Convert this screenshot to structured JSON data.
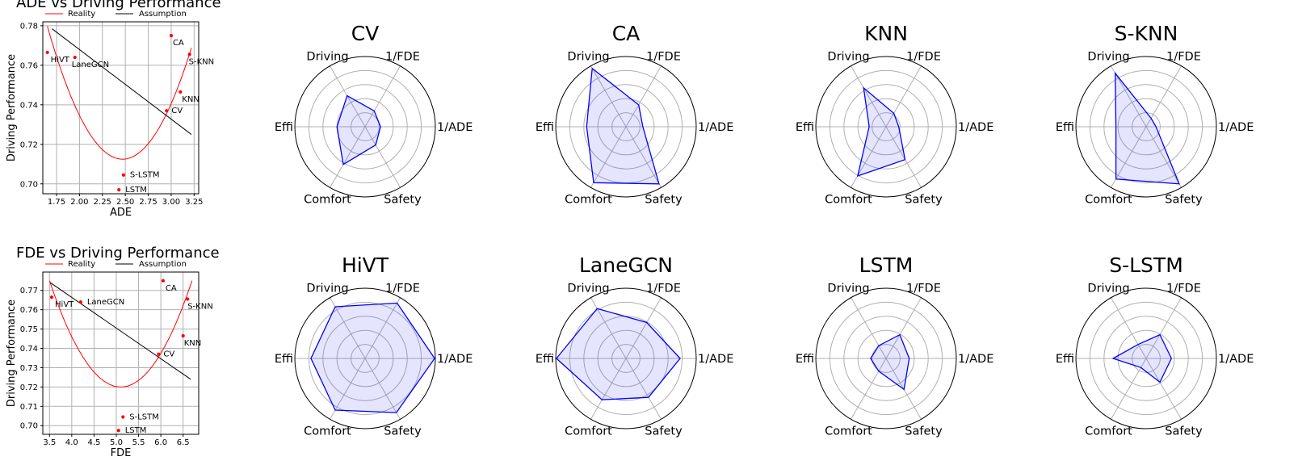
{
  "chart_data": [
    {
      "type": "scatter",
      "id": "ade",
      "title": "ADE vs Driving Performance",
      "xlabel": "ADE",
      "ylabel": "Driving Performance",
      "xlim": [
        1.6,
        3.3
      ],
      "ylim": [
        0.695,
        0.782
      ],
      "xticks": [
        1.75,
        2.0,
        2.25,
        2.5,
        2.75,
        3.0,
        3.25
      ],
      "xtick_labels": [
        "1.75",
        "2.00",
        "2.25",
        "2.50",
        "2.75",
        "3.00",
        "3.25"
      ],
      "yticks": [
        0.7,
        0.72,
        0.74,
        0.76,
        0.78
      ],
      "ytick_labels": [
        "0.70",
        "0.72",
        "0.74",
        "0.76",
        "0.78"
      ],
      "grid": true,
      "legend": [
        "Reality",
        "Assumption"
      ],
      "points": [
        {
          "label": "HiVT",
          "x": 1.65,
          "y": 0.7665
        },
        {
          "label": "LaneGCN",
          "x": 1.95,
          "y": 0.764
        },
        {
          "label": "CA",
          "x": 3.0,
          "y": 0.775
        },
        {
          "label": "S-KNN",
          "x": 3.2,
          "y": 0.7655
        },
        {
          "label": "KNN",
          "x": 3.1,
          "y": 0.7465
        },
        {
          "label": "CV",
          "x": 2.95,
          "y": 0.737
        },
        {
          "label": "S-LSTM",
          "x": 2.48,
          "y": 0.7045
        },
        {
          "label": "LSTM",
          "x": 2.43,
          "y": 0.697
        }
      ],
      "reality_curve": {
        "x_vertex": 2.47,
        "y_vertex": 0.7125,
        "a": 0.1,
        "x_range": [
          1.65,
          3.22
        ]
      },
      "assumption_line": {
        "x0": 1.7,
        "y0": 0.7785,
        "x1": 3.22,
        "y1": 0.725
      }
    },
    {
      "type": "scatter",
      "id": "fde",
      "title": "FDE vs Driving Performance",
      "xlabel": "FDE",
      "ylabel": "Driving Performance",
      "xlim": [
        3.35,
        6.85
      ],
      "ylim": [
        0.6955,
        0.7795
      ],
      "xticks": [
        3.5,
        4.0,
        4.5,
        5.0,
        5.5,
        6.0,
        6.5
      ],
      "xtick_labels": [
        "3.5",
        "4.0",
        "4.5",
        "5.0",
        "5.5",
        "6.0",
        "6.5"
      ],
      "yticks": [
        0.7,
        0.71,
        0.72,
        0.73,
        0.74,
        0.75,
        0.76,
        0.77
      ],
      "ytick_labels": [
        "0.70",
        "0.71",
        "0.72",
        "0.73",
        "0.74",
        "0.75",
        "0.76",
        "0.77"
      ],
      "grid": true,
      "legend": [
        "Reality",
        "Assumption"
      ],
      "points": [
        {
          "label": "HiVT",
          "x": 3.55,
          "y": 0.7665
        },
        {
          "label": "LaneGCN",
          "x": 4.2,
          "y": 0.764
        },
        {
          "label": "CA",
          "x": 6.05,
          "y": 0.775
        },
        {
          "label": "S-KNN",
          "x": 6.6,
          "y": 0.7655
        },
        {
          "label": "KNN",
          "x": 6.5,
          "y": 0.7465
        },
        {
          "label": "CV",
          "x": 5.95,
          "y": 0.737
        },
        {
          "label": "S-LSTM",
          "x": 5.15,
          "y": 0.7045
        },
        {
          "label": "LSTM",
          "x": 5.05,
          "y": 0.6975
        }
      ],
      "reality_curve": {
        "x_vertex": 5.1,
        "y_vertex": 0.72,
        "a": 0.0215,
        "x_range": [
          3.5,
          6.7
        ]
      },
      "assumption_line": {
        "x0": 3.52,
        "y0": 0.774,
        "x1": 6.67,
        "y1": 0.724
      }
    },
    {
      "type": "radar",
      "title": "CV",
      "axes": [
        "1/ADE",
        "1/FDE",
        "Driving",
        "Effi",
        "Comfort",
        "Safety"
      ],
      "values": [
        0.22,
        0.26,
        0.51,
        0.4,
        0.62,
        0.3
      ]
    },
    {
      "type": "radar",
      "title": "CA",
      "axes": [
        "1/ADE",
        "1/FDE",
        "Driving",
        "Effi",
        "Comfort",
        "Safety"
      ],
      "values": [
        0.24,
        0.36,
        0.96,
        0.56,
        0.92,
        0.94
      ]
    },
    {
      "type": "radar",
      "title": "KNN",
      "axes": [
        "1/ADE",
        "1/FDE",
        "Driving",
        "Effi",
        "Comfort",
        "Safety"
      ],
      "values": [
        0.18,
        0.22,
        0.64,
        0.24,
        0.81,
        0.54
      ]
    },
    {
      "type": "radar",
      "title": "S-KNN",
      "axes": [
        "1/ADE",
        "1/FDE",
        "Driving",
        "Effi",
        "Comfort",
        "Safety"
      ],
      "values": [
        0.14,
        0.14,
        0.88,
        0.43,
        0.86,
        0.94
      ]
    },
    {
      "type": "radar",
      "title": "HiVT",
      "axes": [
        "1/ADE",
        "1/FDE",
        "Driving",
        "Effi",
        "Comfort",
        "Safety"
      ],
      "values": [
        0.99,
        0.91,
        0.85,
        0.77,
        0.85,
        0.89
      ]
    },
    {
      "type": "radar",
      "title": "LaneGCN",
      "axes": [
        "1/ADE",
        "1/FDE",
        "Driving",
        "Effi",
        "Comfort",
        "Safety"
      ],
      "values": [
        0.77,
        0.59,
        0.82,
        0.99,
        0.68,
        0.64
      ]
    },
    {
      "type": "radar",
      "title": "LSTM",
      "axes": [
        "1/ADE",
        "1/FDE",
        "Driving",
        "Effi",
        "Comfort",
        "Safety"
      ],
      "values": [
        0.33,
        0.39,
        0.21,
        0.22,
        0.21,
        0.51
      ]
    },
    {
      "type": "radar",
      "title": "S-LSTM",
      "axes": [
        "1/ADE",
        "1/FDE",
        "Driving",
        "Effi",
        "Comfort",
        "Safety"
      ],
      "values": [
        0.36,
        0.39,
        0.23,
        0.47,
        0.15,
        0.39
      ]
    }
  ]
}
